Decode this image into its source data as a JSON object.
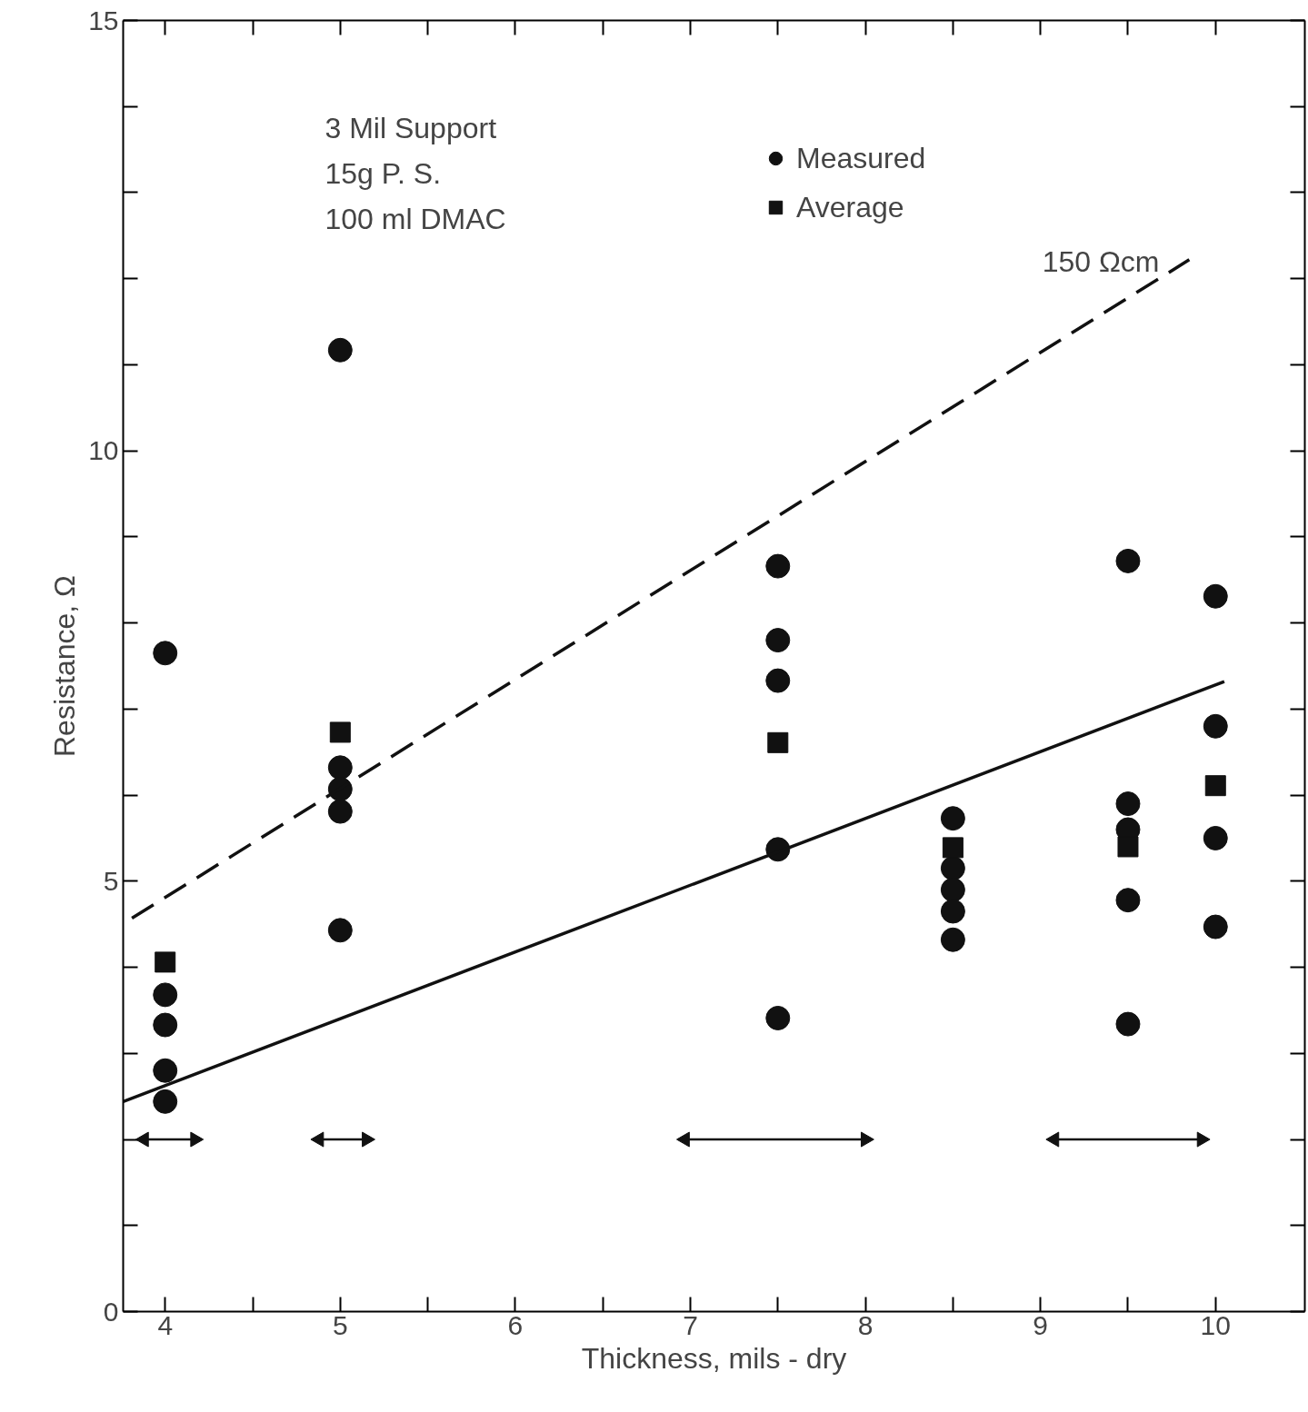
{
  "chart_data": {
    "type": "scatter",
    "xlabel": "Thickness, mils - dry",
    "ylabel": "Resistance, Ω",
    "xlim": [
      3.76,
      10.51
    ],
    "ylim": [
      0,
      15
    ],
    "xticks": [
      4,
      {
        "value": 4.5,
        "label": null
      },
      5,
      {
        "value": 5.5,
        "label": null
      },
      6,
      {
        "value": 6.5,
        "label": null
      },
      7,
      {
        "value": 7.5,
        "label": null
      },
      8,
      {
        "value": 8.5,
        "label": null
      },
      9,
      {
        "value": 9.5,
        "label": null
      },
      10
    ],
    "yticks": [
      0,
      {
        "value": 1,
        "label": null
      },
      {
        "value": 2,
        "label": null
      },
      {
        "value": 3,
        "label": null
      },
      {
        "value": 4,
        "label": null
      },
      5,
      {
        "value": 6,
        "label": null
      },
      {
        "value": 7,
        "label": null
      },
      {
        "value": 8,
        "label": null
      },
      {
        "value": 9,
        "label": null
      },
      10,
      {
        "value": 11,
        "label": null
      },
      {
        "value": 12,
        "label": null
      },
      {
        "value": 13,
        "label": null
      },
      {
        "value": 14,
        "label": null
      },
      15
    ],
    "grid": false,
    "legend": "top",
    "series": [
      {
        "name": "Measured",
        "marker": "circle",
        "color": "#111111",
        "x": [
          4,
          4,
          4,
          4,
          4,
          5,
          5,
          5,
          5,
          5,
          7.5,
          7.5,
          7.5,
          7.5,
          7.5,
          8.5,
          8.5,
          8.5,
          8.5,
          8.5,
          9.5,
          9.5,
          9.5,
          9.5,
          9.5,
          10,
          10,
          10,
          10
        ],
        "values": [
          7.65,
          3.68,
          3.33,
          2.8,
          2.44,
          11.17,
          6.32,
          6.07,
          5.81,
          4.43,
          8.66,
          7.8,
          7.33,
          5.37,
          3.41,
          5.73,
          5.15,
          4.9,
          4.65,
          4.32,
          8.72,
          5.9,
          5.6,
          4.78,
          3.34,
          8.31,
          6.8,
          5.5,
          4.47
        ]
      },
      {
        "name": "Average",
        "marker": "square",
        "color": "#111111",
        "x": [
          4,
          5,
          7.5,
          8.5,
          9.5,
          10
        ],
        "values": [
          4.06,
          6.73,
          6.61,
          5.39,
          5.4,
          6.11
        ]
      },
      {
        "type": "line",
        "line_style": "dashed",
        "color": "#111111",
        "x": [
          3.81,
          9.85
        ],
        "values": [
          4.57,
          12.22
        ]
      },
      {
        "type": "line",
        "line_style": "solid",
        "color": "#111111",
        "x": [
          3.76,
          10.05
        ],
        "values": [
          2.44,
          7.32
        ]
      },
      {
        "type": "line",
        "marker": "triangle",
        "color": "#111111",
        "x": [
          3.88,
          4.17
        ],
        "values": [
          2,
          2
        ]
      },
      {
        "type": "line",
        "marker": "triangle",
        "color": "#111111",
        "x": [
          4.88,
          5.15
        ],
        "values": [
          2,
          2
        ]
      },
      {
        "type": "line",
        "marker": "triangle",
        "color": "#111111",
        "x": [
          6.97,
          8.0
        ],
        "values": [
          2,
          2
        ]
      },
      {
        "type": "line",
        "marker": "triangle",
        "color": "#111111",
        "x": [
          9.08,
          9.92
        ],
        "values": [
          2,
          2
        ]
      }
    ],
    "annotations": [
      "3 Mil Support",
      "15g P. S.",
      "100 ml DMAC",
      "150 Ωcm"
    ]
  }
}
